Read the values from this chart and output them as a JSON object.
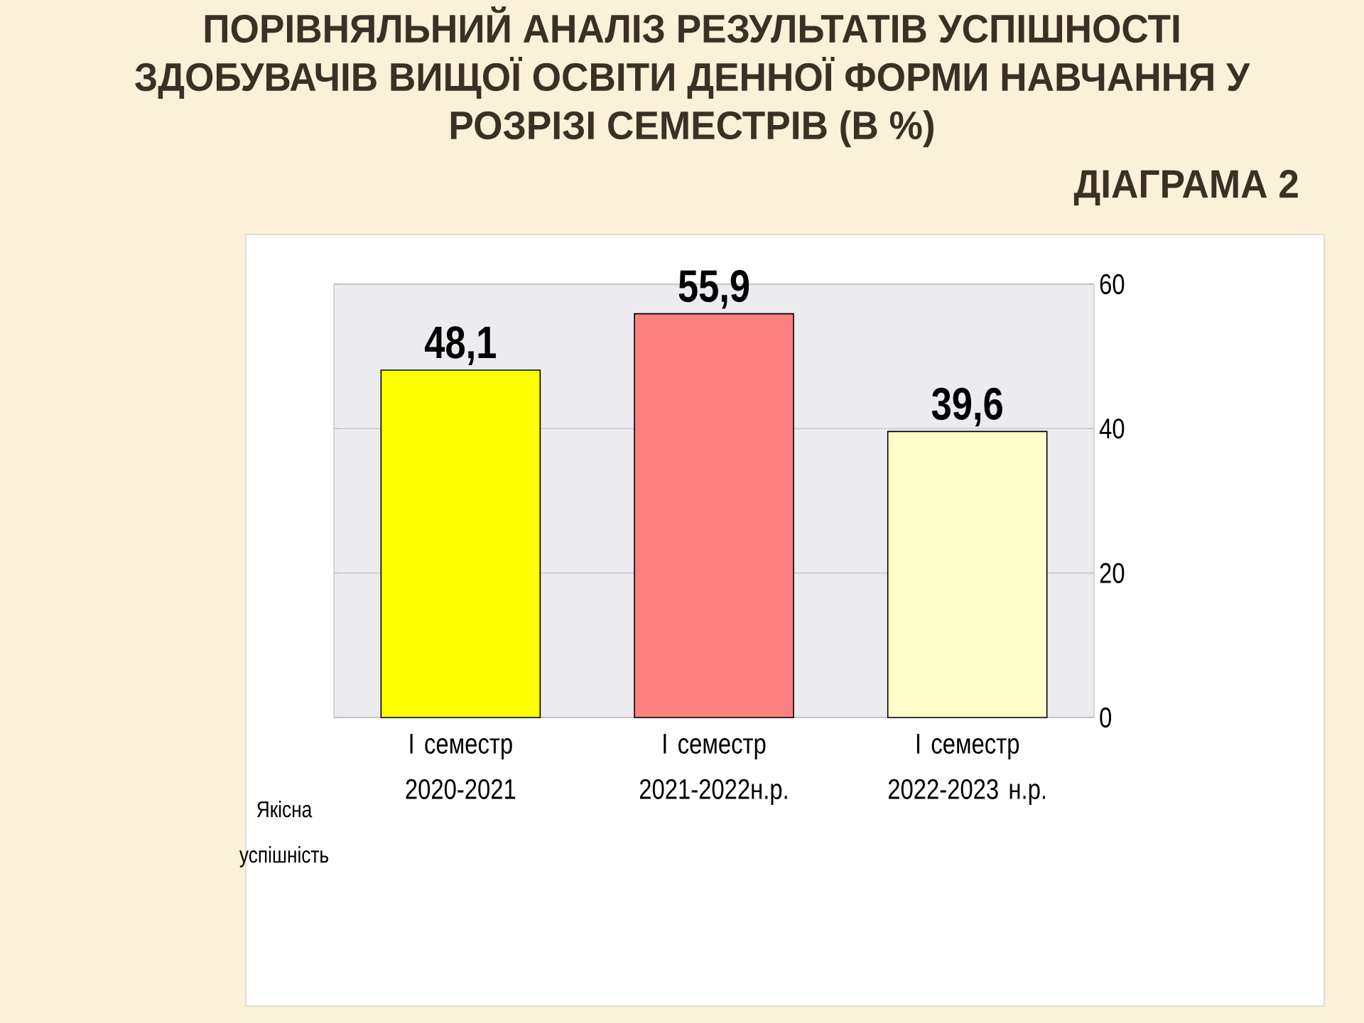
{
  "chart_data": {
    "type": "bar",
    "title": "ПОРІВНЯЛЬНИЙ АНАЛІЗ РЕЗУЛЬТАТІВ УСПІШНОСТІ ЗДОБУВАЧІВ ВИЩОЇ ОСВІТИ ДЕННОЇ ФОРМИ НАВЧАННЯ У РОЗРІЗІ СЕМЕСТРІВ (В %)",
    "subtitle": "ДІАГРАМА 2",
    "categories": [
      "I семестр 2020-2021",
      "I семестр 2021-2022н.р.",
      "I семестр 2022-2023 н.р."
    ],
    "series": [
      {
        "name": "Якісна успішність",
        "values": [
          48.1,
          55.9,
          39.6
        ],
        "colors": [
          "#ffff00",
          "#ff8080",
          "#ffffcc"
        ],
        "value_labels": [
          "48,1",
          "55,9",
          "39,6"
        ]
      }
    ],
    "ylim": [
      0,
      60
    ],
    "yticks": [
      0,
      20,
      40,
      60
    ],
    "grid": "y"
  }
}
